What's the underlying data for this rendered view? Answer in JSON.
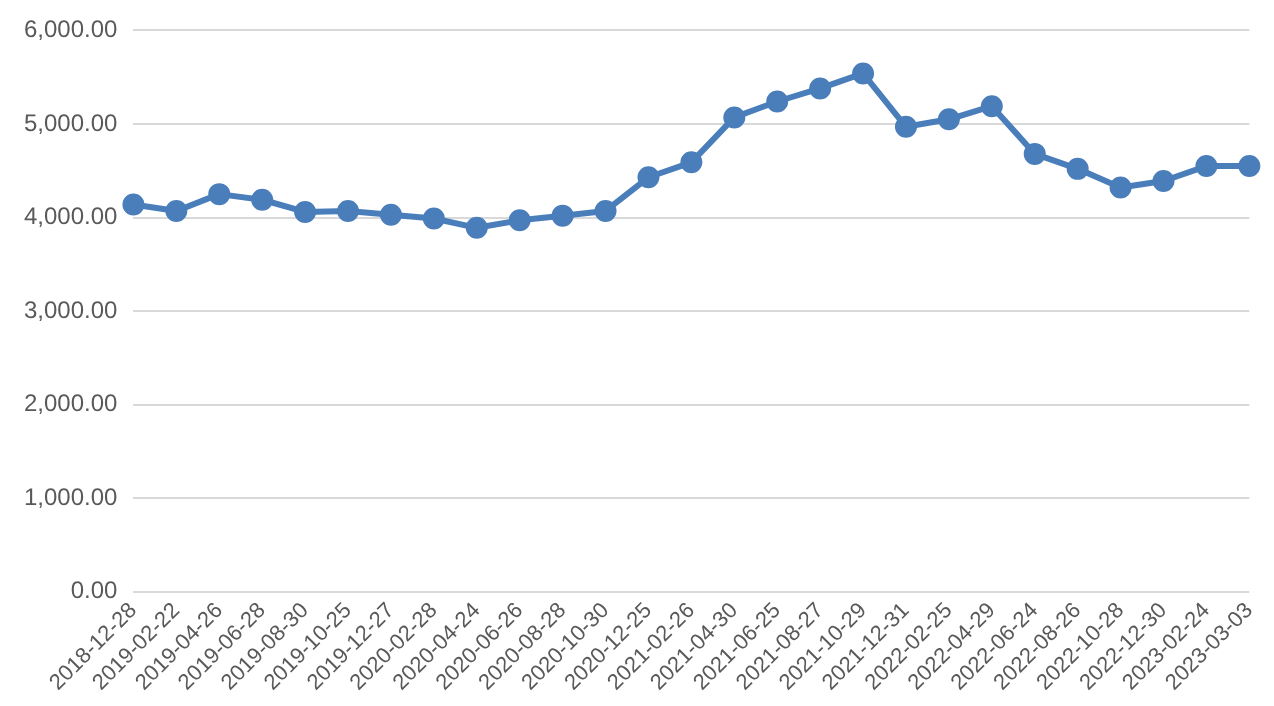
{
  "chart_data": {
    "type": "line",
    "categories": [
      "2018-12-28",
      "2019-02-22",
      "2019-04-26",
      "2019-06-28",
      "2019-08-30",
      "2019-10-25",
      "2019-12-27",
      "2020-02-28",
      "2020-04-24",
      "2020-06-26",
      "2020-08-28",
      "2020-10-30",
      "2020-12-25",
      "2021-02-26",
      "2021-04-30",
      "2021-06-25",
      "2021-08-27",
      "2021-10-29",
      "2021-12-31",
      "2022-02-25",
      "2022-04-29",
      "2022-06-24",
      "2022-08-26",
      "2022-10-28",
      "2022-12-30",
      "2023-02-24",
      "2023-03-03"
    ],
    "series": [
      {
        "color": "#4a7ebb",
        "values": [
          4140,
          4070,
          4250,
          4190,
          4060,
          4070,
          4030,
          3990,
          3890,
          3970,
          4020,
          4070,
          4430,
          4590,
          5070,
          5240,
          5380,
          5540,
          4970,
          5050,
          5190,
          4680,
          4520,
          4320,
          4390,
          4550,
          4550
        ]
      }
    ],
    "ylim": [
      0,
      6000
    ],
    "yticks": [
      {
        "value": 0,
        "label": "0.00"
      },
      {
        "value": 1000,
        "label": "1,000.00"
      },
      {
        "value": 2000,
        "label": "2,000.00"
      },
      {
        "value": 3000,
        "label": "3,000.00"
      },
      {
        "value": 4000,
        "label": "4,000.00"
      },
      {
        "value": 5000,
        "label": "5,000.00"
      },
      {
        "value": 6000,
        "label": "6,000.00"
      }
    ],
    "grid": "y",
    "legend": false,
    "marker": "circle",
    "line_style": "solid"
  }
}
